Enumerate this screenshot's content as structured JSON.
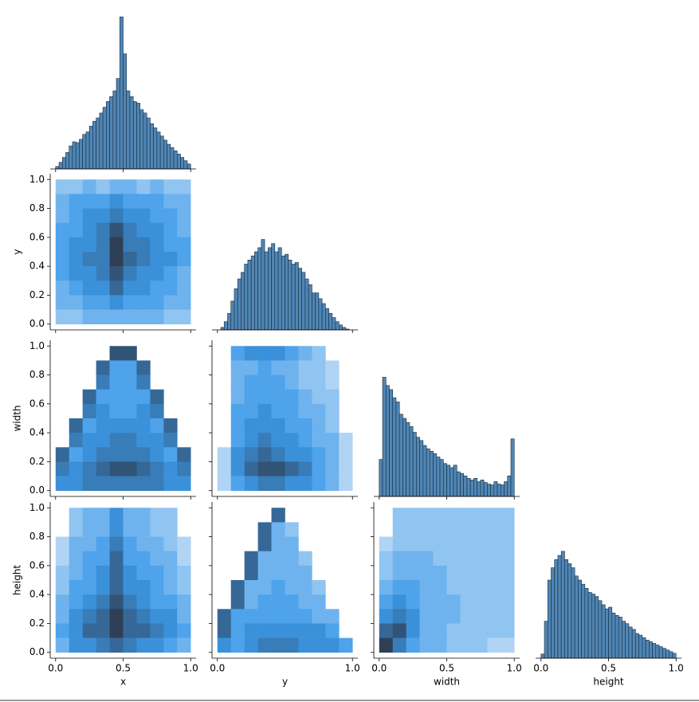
{
  "chart_data": {
    "type": "pairplot",
    "variables": [
      "x",
      "y",
      "width",
      "height"
    ],
    "xlim": [
      -0.04,
      1.04
    ],
    "ylim": [
      -0.04,
      1.04
    ],
    "yticks": [
      {
        "value": 0,
        "label": "0.0"
      },
      {
        "value": 0.2,
        "label": "0.2"
      },
      {
        "value": 0.4,
        "label": "0.4"
      },
      {
        "value": 0.6,
        "label": "0.6"
      },
      {
        "value": 0.8,
        "label": "0.8"
      },
      {
        "value": 1,
        "label": "1.0"
      }
    ],
    "xticks": [
      [
        {
          "value": 0,
          "label": "0.0"
        },
        {
          "value": 0.5,
          "label": "0.5"
        },
        {
          "value": 1,
          "label": "1.0"
        }
      ],
      [
        {
          "value": 0,
          "label": "0.0"
        },
        {
          "value": 1,
          "label": "1.0"
        }
      ],
      [
        {
          "value": 0,
          "label": "0.0"
        },
        {
          "value": 0.5,
          "label": "0.5"
        },
        {
          "value": 1,
          "label": "1.0"
        }
      ],
      [
        {
          "value": 0,
          "label": "0.0"
        },
        {
          "value": 0.5,
          "label": "0.5"
        },
        {
          "value": 1,
          "label": "1.0"
        }
      ]
    ],
    "hist_color": "#4f86b6",
    "hist_edge": "#1c2a38",
    "cmap": [
      "#d2e4f8",
      "#3d9be9",
      "#2e3f55"
    ],
    "bins": [
      0,
      0.025,
      0.05,
      0.075,
      0.1,
      0.125,
      0.15,
      0.175,
      0.2,
      0.225,
      0.25,
      0.275,
      0.3,
      0.325,
      0.35,
      0.375,
      0.4,
      0.425,
      0.45,
      0.475,
      0.5,
      0.525,
      0.55,
      0.575,
      0.6,
      0.625,
      0.65,
      0.675,
      0.7,
      0.725,
      0.75,
      0.775,
      0.8,
      0.825,
      0.85,
      0.875,
      0.9,
      0.925,
      0.95,
      0.975,
      1
    ],
    "count_lim": [
      0,
      190
    ],
    "diagonal": [
      {
        "counts": [
          3,
          8,
          14,
          20,
          28,
          33,
          32,
          36,
          42,
          45,
          52,
          58,
          62,
          68,
          75,
          82,
          88,
          95,
          110,
          185,
          140,
          95,
          88,
          82,
          80,
          72,
          68,
          62,
          55,
          50,
          45,
          40,
          35,
          30,
          26,
          22,
          18,
          14,
          10,
          6
        ]
      },
      {
        "counts": [
          0,
          3,
          10,
          20,
          35,
          50,
          62,
          70,
          80,
          85,
          90,
          95,
          100,
          110,
          95,
          100,
          105,
          95,
          100,
          90,
          92,
          85,
          80,
          82,
          75,
          70,
          62,
          55,
          45,
          45,
          38,
          32,
          26,
          20,
          15,
          10,
          6,
          3,
          1,
          0
        ]
      },
      {
        "counts": [
          45,
          145,
          135,
          130,
          120,
          115,
          100,
          95,
          90,
          85,
          78,
          72,
          68,
          62,
          58,
          55,
          52,
          48,
          45,
          40,
          38,
          35,
          38,
          30,
          28,
          25,
          22,
          20,
          22,
          18,
          20,
          17,
          15,
          14,
          18,
          15,
          14,
          18,
          25,
          70
        ]
      },
      {
        "counts": [
          5,
          45,
          95,
          110,
          120,
          125,
          130,
          120,
          115,
          110,
          100,
          95,
          90,
          85,
          80,
          78,
          75,
          70,
          65,
          60,
          62,
          55,
          52,
          50,
          45,
          42,
          38,
          35,
          30,
          28,
          25,
          22,
          20,
          18,
          16,
          14,
          12,
          10,
          8,
          6
        ]
      }
    ],
    "grid_edges": [
      0,
      0.1,
      0.2,
      0.3,
      0.4,
      0.5,
      0.6,
      0.7,
      0.8,
      0.9,
      1
    ],
    "count_max": 9,
    "pairs": [
      {
        "counts": [
          [
            2,
            2,
            3,
            2,
            3,
            3,
            2,
            3,
            2,
            2
          ],
          [
            3,
            4,
            4,
            4,
            5,
            4,
            4,
            4,
            3,
            3
          ],
          [
            3,
            4,
            5,
            5,
            6,
            5,
            5,
            4,
            4,
            3
          ],
          [
            4,
            4,
            5,
            6,
            8,
            6,
            5,
            5,
            4,
            3
          ],
          [
            4,
            5,
            5,
            6,
            9,
            6,
            6,
            5,
            4,
            4
          ],
          [
            4,
            5,
            6,
            6,
            9,
            7,
            6,
            5,
            5,
            4
          ],
          [
            4,
            5,
            5,
            6,
            8,
            6,
            5,
            5,
            4,
            3
          ],
          [
            3,
            4,
            5,
            5,
            7,
            5,
            5,
            4,
            4,
            3
          ],
          [
            3,
            3,
            4,
            4,
            5,
            4,
            4,
            4,
            3,
            3
          ],
          [
            2,
            2,
            3,
            3,
            3,
            3,
            3,
            3,
            2,
            2
          ]
        ]
      },
      {
        "counts": [
          [
            0,
            0,
            0,
            0,
            8,
            8,
            0,
            0,
            0,
            0
          ],
          [
            0,
            0,
            0,
            7,
            4,
            4,
            7,
            0,
            0,
            0
          ],
          [
            0,
            0,
            0,
            6,
            4,
            4,
            6,
            0,
            0,
            0
          ],
          [
            0,
            0,
            7,
            4,
            4,
            4,
            4,
            7,
            0,
            0
          ],
          [
            0,
            0,
            6,
            5,
            4,
            4,
            5,
            6,
            0,
            0
          ],
          [
            0,
            7,
            4,
            5,
            5,
            5,
            5,
            4,
            7,
            0
          ],
          [
            0,
            6,
            5,
            5,
            6,
            6,
            5,
            5,
            6,
            0
          ],
          [
            7,
            4,
            5,
            6,
            6,
            6,
            6,
            5,
            4,
            7
          ],
          [
            6,
            5,
            6,
            7,
            8,
            8,
            7,
            6,
            5,
            6
          ],
          [
            5,
            5,
            6,
            6,
            6,
            6,
            6,
            6,
            5,
            5
          ]
        ]
      },
      {
        "counts": [
          [
            0,
            4,
            5,
            5,
            5,
            4,
            3,
            2,
            0,
            0
          ],
          [
            0,
            3,
            3,
            4,
            3,
            3,
            2,
            2,
            1,
            0
          ],
          [
            0,
            3,
            4,
            4,
            4,
            3,
            2,
            2,
            1,
            0
          ],
          [
            0,
            3,
            4,
            4,
            4,
            4,
            3,
            2,
            2,
            0
          ],
          [
            0,
            4,
            4,
            5,
            4,
            4,
            3,
            3,
            2,
            0
          ],
          [
            0,
            4,
            5,
            5,
            5,
            4,
            4,
            3,
            2,
            0
          ],
          [
            0,
            4,
            5,
            6,
            5,
            5,
            4,
            3,
            3,
            1
          ],
          [
            1,
            5,
            6,
            7,
            6,
            5,
            5,
            4,
            3,
            1
          ],
          [
            1,
            5,
            7,
            8,
            8,
            7,
            6,
            4,
            3,
            1
          ],
          [
            1,
            4,
            5,
            6,
            6,
            5,
            5,
            4,
            3,
            1
          ]
        ]
      },
      {
        "counts": [
          [
            0,
            2,
            3,
            3,
            5,
            3,
            3,
            2,
            2,
            0
          ],
          [
            0,
            2,
            3,
            3,
            5,
            3,
            3,
            2,
            2,
            0
          ],
          [
            1,
            3,
            3,
            4,
            6,
            4,
            3,
            3,
            2,
            1
          ],
          [
            1,
            3,
            4,
            4,
            7,
            4,
            4,
            3,
            3,
            1
          ],
          [
            2,
            3,
            4,
            5,
            7,
            5,
            4,
            4,
            3,
            2
          ],
          [
            2,
            4,
            4,
            5,
            7,
            5,
            5,
            4,
            3,
            2
          ],
          [
            3,
            4,
            5,
            6,
            8,
            6,
            5,
            4,
            4,
            3
          ],
          [
            3,
            5,
            6,
            7,
            9,
            7,
            6,
            5,
            5,
            3
          ],
          [
            4,
            5,
            7,
            7,
            9,
            7,
            7,
            6,
            5,
            4
          ],
          [
            3,
            5,
            5,
            6,
            7,
            6,
            5,
            5,
            4,
            3
          ]
        ]
      },
      {
        "counts": [
          [
            0,
            0,
            0,
            0,
            7,
            0,
            0,
            0,
            0,
            0
          ],
          [
            0,
            0,
            0,
            7,
            3,
            2,
            0,
            0,
            0,
            0
          ],
          [
            0,
            0,
            0,
            7,
            3,
            3,
            0,
            0,
            0,
            0
          ],
          [
            0,
            0,
            7,
            3,
            3,
            3,
            2,
            0,
            0,
            0
          ],
          [
            0,
            0,
            7,
            3,
            3,
            3,
            3,
            0,
            0,
            0
          ],
          [
            0,
            7,
            3,
            3,
            4,
            3,
            3,
            2,
            0,
            0
          ],
          [
            0,
            7,
            3,
            4,
            4,
            4,
            3,
            3,
            0,
            0
          ],
          [
            7,
            4,
            4,
            4,
            4,
            4,
            4,
            3,
            3,
            0
          ],
          [
            7,
            4,
            5,
            5,
            5,
            5,
            5,
            5,
            4,
            0
          ],
          [
            5,
            4,
            5,
            6,
            6,
            6,
            5,
            5,
            5,
            4
          ]
        ]
      },
      {
        "counts": [
          [
            0,
            2,
            2,
            2,
            2,
            2,
            2,
            2,
            2,
            2
          ],
          [
            0,
            2,
            2,
            2,
            2,
            2,
            2,
            2,
            2,
            2
          ],
          [
            1,
            2,
            2,
            2,
            2,
            2,
            2,
            2,
            2,
            2
          ],
          [
            2,
            3,
            3,
            3,
            2,
            2,
            2,
            2,
            2,
            2
          ],
          [
            2,
            3,
            3,
            3,
            3,
            2,
            2,
            2,
            2,
            2
          ],
          [
            3,
            4,
            4,
            3,
            3,
            2,
            2,
            2,
            2,
            2
          ],
          [
            4,
            5,
            4,
            3,
            3,
            3,
            2,
            2,
            2,
            2
          ],
          [
            5,
            6,
            5,
            3,
            3,
            3,
            2,
            2,
            2,
            2
          ],
          [
            7,
            8,
            5,
            3,
            3,
            2,
            2,
            2,
            2,
            2
          ],
          [
            9,
            6,
            4,
            3,
            3,
            2,
            2,
            2,
            1,
            1
          ]
        ]
      }
    ]
  }
}
